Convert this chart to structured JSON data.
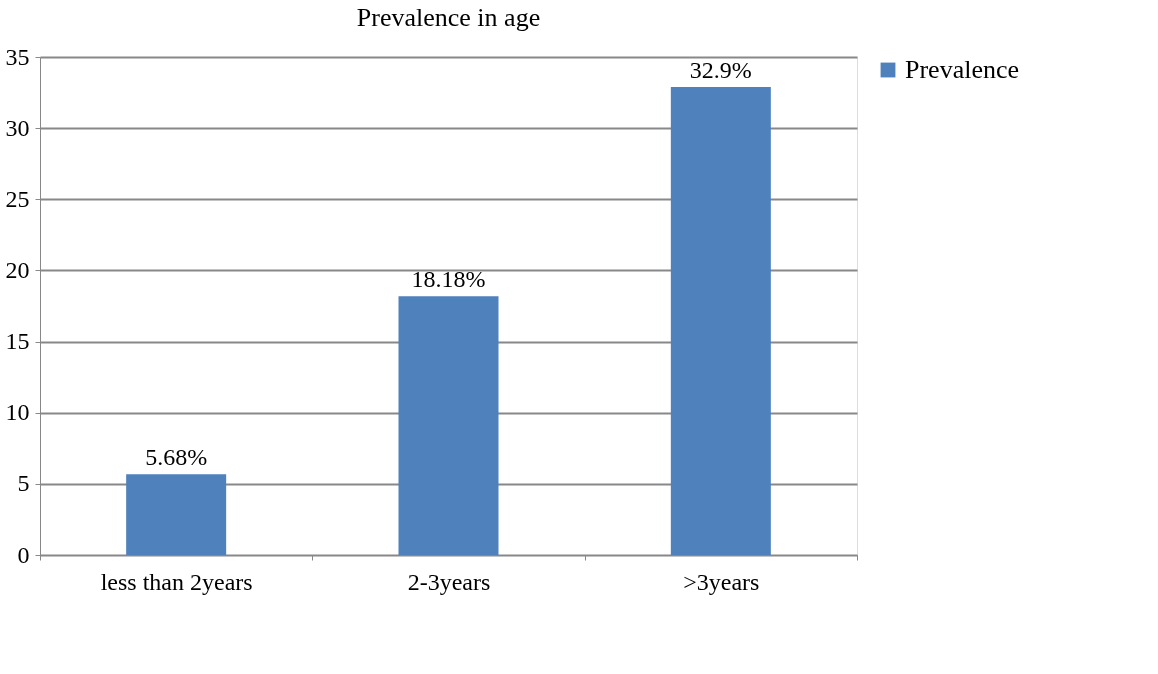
{
  "chart_data": {
    "type": "bar",
    "title": "Prevalence in age",
    "categories": [
      "less than 2years",
      "2-3years",
      ">3years"
    ],
    "series": [
      {
        "name": "Prevalence",
        "color": "#4f81bd",
        "values": [
          5.68,
          18.18,
          32.9
        ],
        "value_labels": [
          "5.68%",
          "18.18%",
          "32.9%"
        ]
      }
    ],
    "ylim": [
      0,
      35
    ],
    "yticks": [
      0,
      5,
      10,
      15,
      20,
      25,
      30,
      35
    ],
    "grid": "y",
    "legend": "right"
  }
}
